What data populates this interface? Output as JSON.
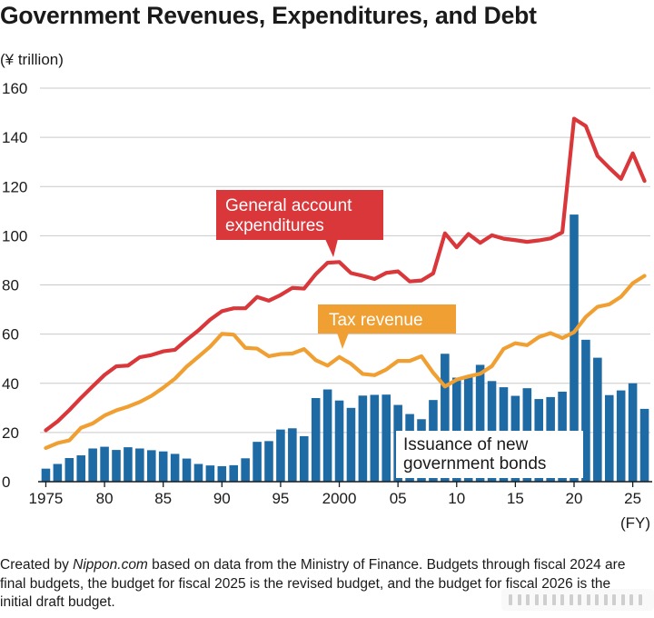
{
  "title": "Government Revenues, Expenditures, and Debt",
  "unit_label": "(¥ trillion)",
  "x_unit_label": "(FY)",
  "source_note": {
    "prefix": "Created by ",
    "site": "Nippon.com",
    "suffix": " based on data from the Ministry of Finance. Budgets through fiscal 2024 are final budgets, the budget for fiscal 2025 is the revised budget, and the budget for fiscal 2026 is the initial draft budget."
  },
  "colors": {
    "expenditures": "#d9373a",
    "tax_revenue": "#f0a033",
    "bonds": "#1d6aa5",
    "grid": "#c9c9c9",
    "axis": "#1a1a1a"
  },
  "chart_data": {
    "type": "bar+line",
    "x": [
      1975,
      1976,
      1977,
      1978,
      1979,
      1980,
      1981,
      1982,
      1983,
      1984,
      1985,
      1986,
      1987,
      1988,
      1989,
      1990,
      1991,
      1992,
      1993,
      1994,
      1995,
      1996,
      1997,
      1998,
      1999,
      2000,
      2001,
      2002,
      2003,
      2004,
      2005,
      2006,
      2007,
      2008,
      2009,
      2010,
      2011,
      2012,
      2013,
      2014,
      2015,
      2016,
      2017,
      2018,
      2019,
      2020,
      2021,
      2022,
      2023,
      2024,
      2025,
      2026
    ],
    "x_tick_values": [
      1975,
      1980,
      1985,
      1990,
      1995,
      2000,
      2005,
      2010,
      2015,
      2020,
      2025
    ],
    "x_tick_labels": [
      "1975",
      "80",
      "85",
      "90",
      "95",
      "2000",
      "05",
      "10",
      "15",
      "20",
      "25"
    ],
    "ylim": [
      0,
      160
    ],
    "y_ticks": [
      0,
      20,
      40,
      60,
      80,
      100,
      120,
      140,
      160
    ],
    "grid": true,
    "series": [
      {
        "name": "General account expenditures",
        "type": "line",
        "values": [
          20.9,
          24.5,
          29.1,
          34.1,
          38.8,
          43.4,
          46.9,
          47.2,
          50.6,
          51.5,
          53.0,
          53.6,
          57.7,
          61.5,
          65.9,
          69.3,
          70.5,
          70.5,
          75.1,
          73.6,
          75.9,
          78.8,
          78.5,
          84.4,
          89.0,
          89.3,
          84.8,
          83.7,
          82.4,
          84.9,
          85.5,
          81.4,
          81.8,
          84.7,
          101.0,
          95.3,
          100.7,
          97.1,
          100.2,
          98.8,
          98.2,
          97.5,
          98.1,
          98.9,
          101.4,
          147.6,
          144.6,
          132.4,
          127.6,
          123.1,
          133.5,
          122.3
        ]
      },
      {
        "name": "Tax revenue",
        "type": "line",
        "values": [
          13.7,
          15.7,
          16.8,
          21.9,
          23.7,
          26.9,
          29.0,
          30.5,
          32.4,
          34.9,
          38.2,
          41.9,
          46.8,
          50.8,
          54.9,
          60.1,
          59.8,
          54.4,
          54.1,
          51.0,
          51.9,
          52.1,
          53.9,
          49.4,
          47.2,
          50.7,
          47.9,
          43.8,
          43.3,
          45.6,
          49.1,
          49.1,
          51.0,
          44.3,
          38.7,
          41.5,
          42.8,
          43.9,
          47.0,
          54.0,
          56.3,
          55.5,
          58.8,
          60.4,
          58.4,
          60.8,
          67.0,
          71.1,
          72.1,
          75.2,
          80.7,
          83.7
        ]
      },
      {
        "name": "Issuance of new government bonds",
        "type": "bar",
        "values": [
          5.3,
          7.2,
          9.6,
          10.7,
          13.5,
          14.2,
          12.9,
          14.0,
          13.5,
          12.8,
          12.3,
          11.3,
          9.4,
          7.2,
          6.6,
          6.3,
          6.7,
          9.5,
          16.2,
          16.5,
          21.2,
          21.7,
          18.5,
          34.0,
          37.5,
          33.0,
          30.0,
          35.0,
          35.3,
          35.4,
          31.2,
          27.5,
          25.4,
          33.2,
          52.0,
          42.3,
          42.8,
          47.5,
          40.9,
          38.4,
          34.9,
          38.0,
          33.6,
          34.4,
          36.6,
          108.6,
          57.7,
          50.4,
          35.2,
          37.1,
          40.0,
          29.6
        ]
      }
    ],
    "annotations": [
      {
        "series": "General account expenditures",
        "lines": [
          "General account",
          "expenditures"
        ]
      },
      {
        "series": "Tax revenue",
        "lines": [
          "Tax revenue"
        ]
      },
      {
        "series": "Issuance of new government bonds",
        "lines": [
          "Issuance of new",
          "government bonds"
        ]
      }
    ]
  }
}
